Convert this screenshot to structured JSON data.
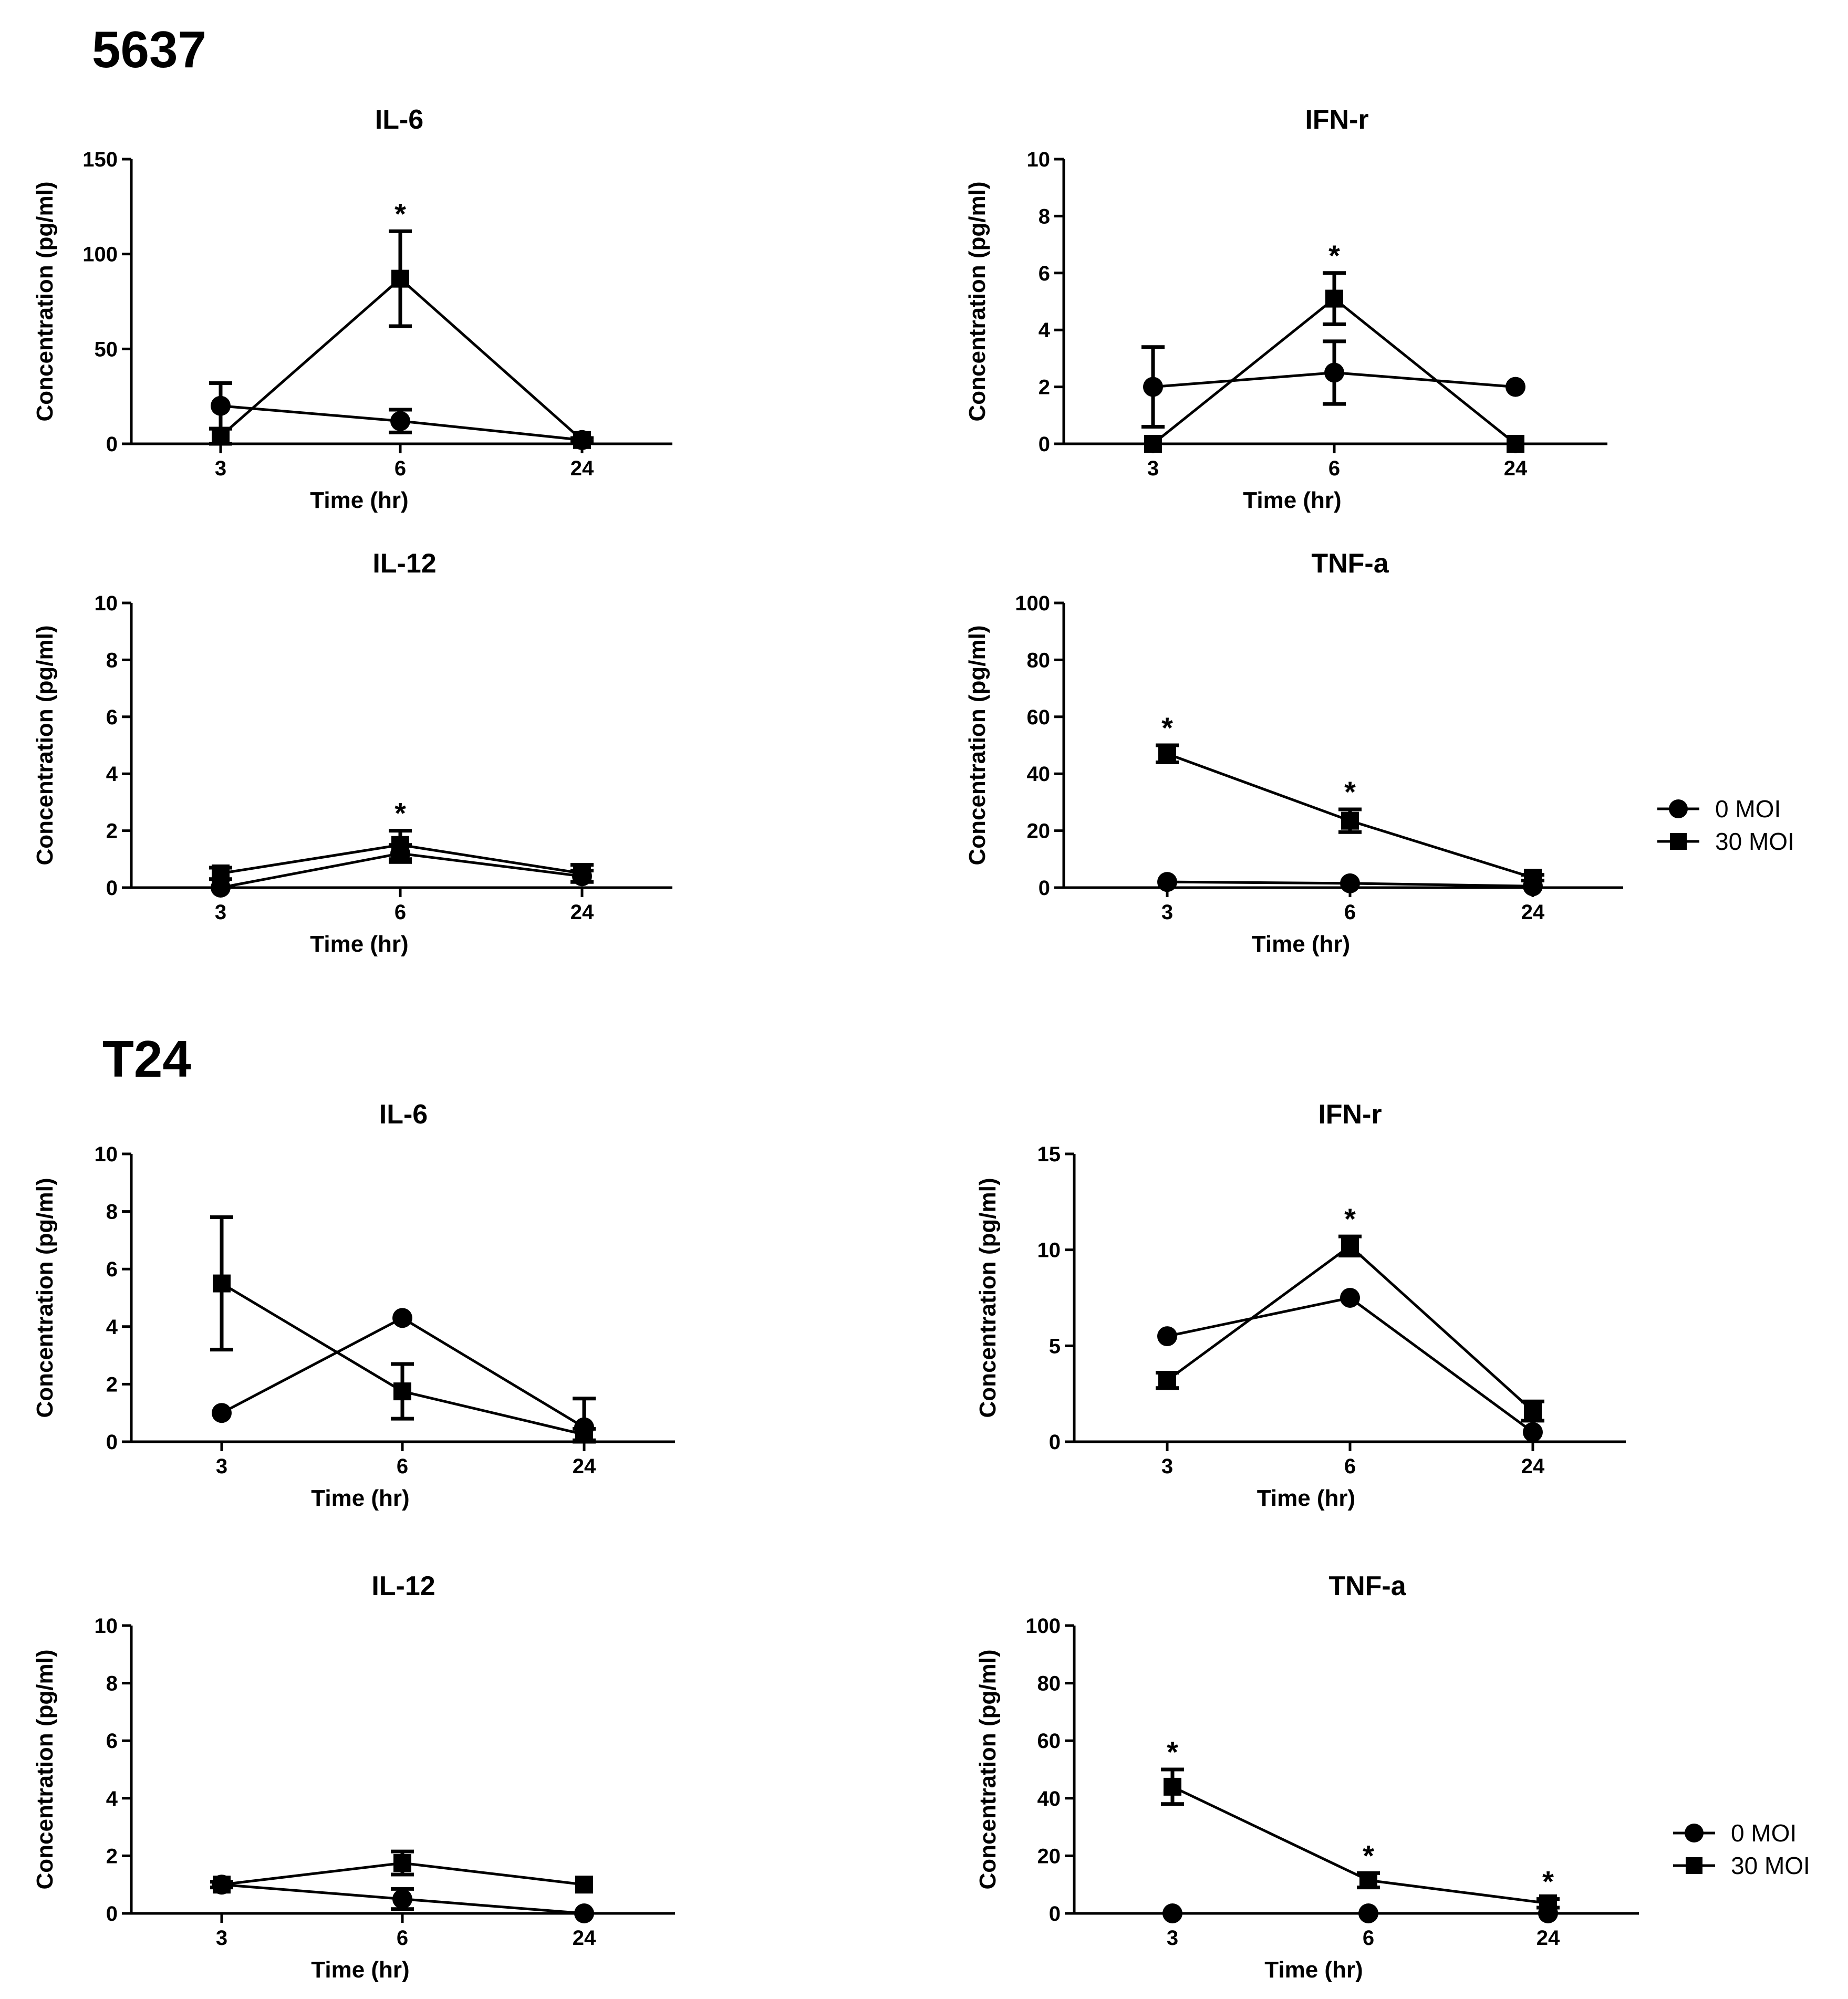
{
  "sections": [
    {
      "label": "5637"
    },
    {
      "label": "T24"
    }
  ],
  "series_names": [
    "0 MOI",
    "30 MOI"
  ],
  "chart_data": [
    {
      "section": "5637",
      "type": "line",
      "title": "IL-6",
      "xlabel": "Time (hr)",
      "ylabel": "Concentration (pg/ml)",
      "categories": [
        "3",
        "6",
        "24"
      ],
      "ylim": [
        0,
        150
      ],
      "yticks": [
        0,
        50,
        100,
        150
      ],
      "series": [
        {
          "name": "0 MOI",
          "marker": "circle",
          "values": [
            20,
            12,
            2
          ],
          "errors": [
            12,
            6,
            1
          ]
        },
        {
          "name": "30 MOI",
          "marker": "square",
          "values": [
            4,
            87,
            2
          ],
          "errors": [
            4,
            25,
            1
          ]
        }
      ],
      "significance": [
        {
          "category": "6",
          "y": 112,
          "label": "*"
        }
      ]
    },
    {
      "section": "5637",
      "type": "line",
      "title": "IFN-r",
      "xlabel": "Time (hr)",
      "ylabel": "Concentration (pg/ml)",
      "categories": [
        "3",
        "6",
        "24"
      ],
      "ylim": [
        0,
        10
      ],
      "yticks": [
        0,
        2,
        4,
        6,
        8,
        10
      ],
      "series": [
        {
          "name": "0 MOI",
          "marker": "circle",
          "values": [
            2,
            2.5,
            2
          ],
          "errors": [
            1.4,
            1.1,
            0
          ]
        },
        {
          "name": "30 MOI",
          "marker": "square",
          "values": [
            0,
            5.1,
            0
          ],
          "errors": [
            0,
            0.9,
            0
          ]
        }
      ],
      "significance": [
        {
          "category": "6",
          "y": 6,
          "label": "*"
        }
      ]
    },
    {
      "section": "5637",
      "type": "line",
      "title": "IL-12",
      "xlabel": "Time (hr)",
      "ylabel": "Concentration (pg/ml)",
      "categories": [
        "3",
        "6",
        "24"
      ],
      "ylim": [
        0,
        10
      ],
      "yticks": [
        0,
        2,
        4,
        6,
        8,
        10
      ],
      "series": [
        {
          "name": "0 MOI",
          "marker": "circle",
          "values": [
            0,
            1.2,
            0.4
          ],
          "errors": [
            0,
            0.3,
            0.2
          ]
        },
        {
          "name": "30 MOI",
          "marker": "square",
          "values": [
            0.5,
            1.5,
            0.5
          ],
          "errors": [
            0.2,
            0.5,
            0.3
          ]
        }
      ],
      "significance": [
        {
          "category": "6",
          "y": 2.0,
          "label": "*"
        }
      ]
    },
    {
      "section": "5637",
      "type": "line",
      "title": "TNF-a",
      "xlabel": "Time (hr)",
      "ylabel": "Concentration (pg/ml)",
      "categories": [
        "3",
        "6",
        "24"
      ],
      "ylim": [
        0,
        100
      ],
      "yticks": [
        0,
        20,
        40,
        60,
        80,
        100
      ],
      "series": [
        {
          "name": "0 MOI",
          "marker": "circle",
          "values": [
            2,
            1.5,
            0.5
          ],
          "errors": [
            0,
            0,
            0
          ]
        },
        {
          "name": "30 MOI",
          "marker": "square",
          "values": [
            47,
            23.5,
            3.5
          ],
          "errors": [
            3,
            4,
            1
          ]
        }
      ],
      "significance": [
        {
          "category": "3",
          "y": 50,
          "label": "*"
        },
        {
          "category": "6",
          "y": 27.5,
          "label": "*"
        }
      ]
    },
    {
      "section": "T24",
      "type": "line",
      "title": "IL-6",
      "xlabel": "Time (hr)",
      "ylabel": "Concentration (pg/ml)",
      "categories": [
        "3",
        "6",
        "24"
      ],
      "ylim": [
        0,
        10
      ],
      "yticks": [
        0,
        2,
        4,
        6,
        8,
        10
      ],
      "series": [
        {
          "name": "0 MOI",
          "marker": "circle",
          "values": [
            1,
            4.3,
            0.5
          ],
          "errors": [
            0,
            0,
            1.0
          ]
        },
        {
          "name": "30 MOI",
          "marker": "square",
          "values": [
            5.5,
            1.75,
            0.25
          ],
          "errors": [
            2.3,
            0.95,
            0.2
          ]
        }
      ],
      "significance": []
    },
    {
      "section": "T24",
      "type": "line",
      "title": "IFN-r",
      "xlabel": "Time (hr)",
      "ylabel": "Concentration (pg/ml)",
      "categories": [
        "3",
        "6",
        "24"
      ],
      "ylim": [
        0,
        15
      ],
      "yticks": [
        0,
        5,
        10,
        15
      ],
      "series": [
        {
          "name": "0 MOI",
          "marker": "circle",
          "values": [
            5.5,
            7.5,
            0.5
          ],
          "errors": [
            0,
            0,
            0
          ]
        },
        {
          "name": "30 MOI",
          "marker": "square",
          "values": [
            3.2,
            10.2,
            1.6
          ],
          "errors": [
            0.4,
            0.5,
            0.5
          ]
        }
      ],
      "significance": [
        {
          "category": "6",
          "y": 10.7,
          "label": "*"
        }
      ]
    },
    {
      "section": "T24",
      "type": "line",
      "title": "IL-12",
      "xlabel": "Time (hr)",
      "ylabel": "Concentration (pg/ml)",
      "categories": [
        "3",
        "6",
        "24"
      ],
      "ylim": [
        0,
        10
      ],
      "yticks": [
        0,
        2,
        4,
        6,
        8,
        10
      ],
      "series": [
        {
          "name": "0 MOI",
          "marker": "circle",
          "values": [
            1,
            0.5,
            0
          ],
          "errors": [
            0,
            0.35,
            0
          ]
        },
        {
          "name": "30 MOI",
          "marker": "square",
          "values": [
            1,
            1.75,
            1
          ],
          "errors": [
            0.1,
            0.4,
            0
          ]
        }
      ],
      "significance": []
    },
    {
      "section": "T24",
      "type": "line",
      "title": "TNF-a",
      "xlabel": "Time (hr)",
      "ylabel": "Concentration (pg/ml)",
      "categories": [
        "3",
        "6",
        "24"
      ],
      "ylim": [
        0,
        100
      ],
      "yticks": [
        0,
        20,
        40,
        60,
        80,
        100
      ],
      "series": [
        {
          "name": "0 MOI",
          "marker": "circle",
          "values": [
            0,
            0,
            0
          ],
          "errors": [
            0,
            0,
            0
          ]
        },
        {
          "name": "30 MOI",
          "marker": "square",
          "values": [
            44,
            11.5,
            3.5
          ],
          "errors": [
            6,
            2.5,
            1.5
          ]
        }
      ],
      "significance": [
        {
          "category": "3",
          "y": 50,
          "label": "*"
        },
        {
          "category": "6",
          "y": 14,
          "label": "*"
        },
        {
          "category": "24",
          "y": 5,
          "label": "*"
        }
      ]
    }
  ],
  "legends": [
    {
      "items": [
        "0 MOI",
        "30 MOI"
      ]
    },
    {
      "items": [
        "0 MOI",
        "30 MOI"
      ]
    }
  ]
}
